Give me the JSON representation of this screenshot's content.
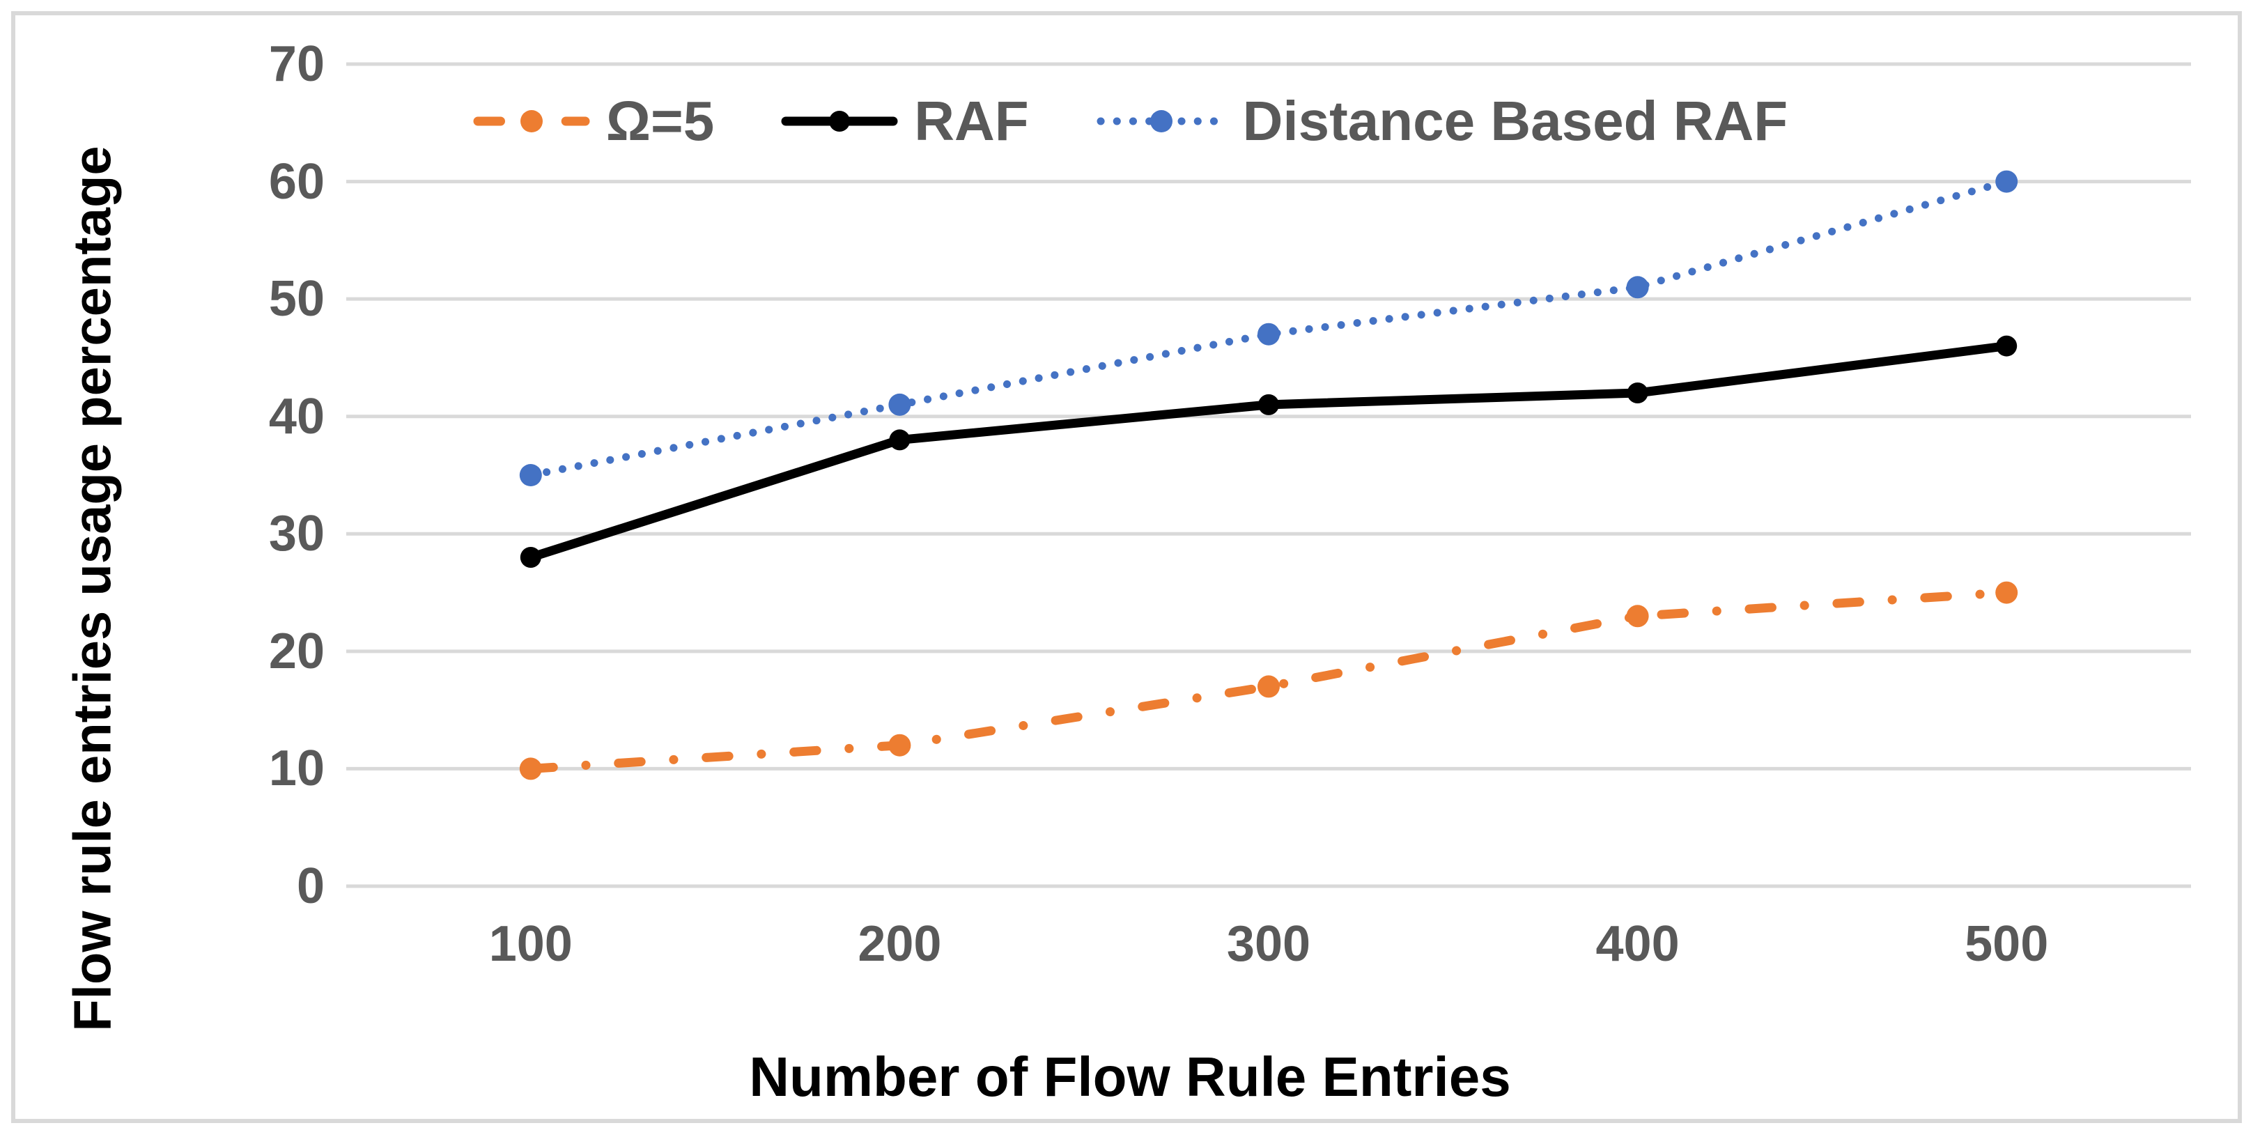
{
  "figure": {
    "background_color": "#FFFFFF",
    "border_color": "#D9D9D9"
  },
  "chart_data": {
    "type": "line",
    "categories": [
      "100",
      "200",
      "300",
      "400",
      "500"
    ],
    "series": [
      {
        "name": "Ω=5",
        "values": [
          10,
          12,
          17,
          23,
          25
        ],
        "color": "#ED7D31",
        "line_style": "dash-dot",
        "marker": "circle"
      },
      {
        "name": "RAF",
        "values": [
          28,
          38,
          41,
          42,
          46
        ],
        "color": "#000000",
        "line_style": "solid",
        "marker": "circle"
      },
      {
        "name": "Distance Based RAF",
        "values": [
          35,
          41,
          47,
          51,
          60
        ],
        "color": "#4472C4",
        "line_style": "dotted",
        "marker": "circle"
      }
    ],
    "xlabel": "Number of Flow Rule Entries",
    "ylabel": "Flow rule entries usage percentage",
    "ylim": [
      0,
      70
    ],
    "yticks": [
      0,
      10,
      20,
      30,
      40,
      50,
      60,
      70
    ],
    "grid": "horizontal",
    "gridline_color": "#D9D9D9",
    "tick_label_color": "#595959",
    "legend_position": "top",
    "legend_text_color": "#595959"
  }
}
